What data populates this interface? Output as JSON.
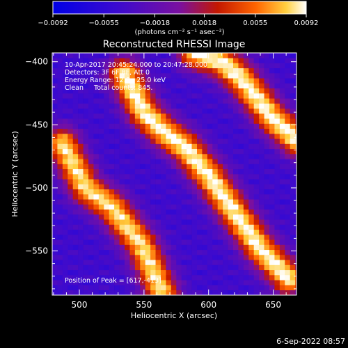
{
  "chart_data": {
    "type": "heatmap",
    "title": "Reconstructed RHESSI Image",
    "xlabel": "Heliocentric X (arcsec)",
    "ylabel": "Heliocentric Y (arcsec)",
    "xlim": [
      479,
      668
    ],
    "ylim": [
      -585,
      -393
    ],
    "x_ticks": [
      {
        "value": 500,
        "label": "500"
      },
      {
        "value": 550,
        "label": "550"
      },
      {
        "value": 600,
        "label": "600"
      },
      {
        "value": 650,
        "label": "650"
      }
    ],
    "y_ticks": [
      {
        "value": -400,
        "label": "−400"
      },
      {
        "value": -450,
        "label": "−450"
      },
      {
        "value": -500,
        "label": "−500"
      },
      {
        "value": -550,
        "label": "−550"
      }
    ],
    "colorbar": {
      "range": [
        -0.0092,
        0.0092
      ],
      "ticks": [
        {
          "value": -0.0092,
          "label": "−0.0092"
        },
        {
          "value": -0.0055,
          "label": "−0.0055"
        },
        {
          "value": -0.0018,
          "label": "−0.0018"
        },
        {
          "value": 0.0018,
          "label": "0.0018"
        },
        {
          "value": 0.0055,
          "label": "0.0055"
        },
        {
          "value": 0.0092,
          "label": "0.0092"
        }
      ],
      "unit_label": "(photons cm⁻² s⁻¹ asec⁻²)"
    },
    "annotations": [
      "10-Apr-2017 20:45:24.000 to 20:47:28.000",
      "Detectors: 3F 6F 8F, Att 0",
      "Energy Range: 12.0 - 25.0 keV",
      "Clean     Total counts: 845.",
      "Position of Peak = [617,-413]"
    ],
    "footer": "6-Sep-2022 08:57",
    "grid": false,
    "ridges": [
      {
        "x": [
          487,
          505,
          525,
          548,
          565
        ],
        "y": [
          -465,
          -500,
          -515,
          -545,
          -585
        ],
        "peak": 0.0085
      },
      {
        "x": [
          535,
          550,
          565,
          582,
          600,
          622,
          640,
          662
        ],
        "y": [
          -410,
          -440,
          -455,
          -468,
          -490,
          -522,
          -548,
          -572
        ],
        "peak": 0.0092
      },
      {
        "x": [
          590,
          610,
          625,
          650,
          668
        ],
        "y": [
          -393,
          -400,
          -413,
          -445,
          -462
        ],
        "peak": 0.0092
      }
    ],
    "background_level": -0.0042
  }
}
